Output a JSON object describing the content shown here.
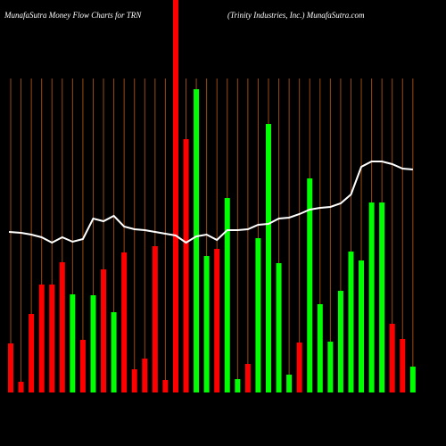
{
  "chart_data": {
    "type": "bar",
    "title": "MunafaSutra  Money  Flow  Charts for TRN",
    "subtitle": "(Trinity Industries, Inc.) MunafaSutra.com",
    "categories": [
      null,
      null,
      null,
      null,
      null,
      null,
      null,
      null,
      null,
      null,
      null,
      null,
      null,
      null,
      null,
      null,
      null,
      null,
      null,
      null,
      null,
      null,
      null,
      null,
      null,
      null,
      null,
      null,
      null,
      null,
      null,
      null,
      null,
      null,
      null,
      null,
      null,
      null,
      null,
      null
    ],
    "values": [
      55,
      12,
      88,
      121,
      121,
      146,
      110,
      59,
      109,
      138,
      90,
      157,
      26,
      38,
      164,
      14,
      440,
      284,
      340,
      153,
      161,
      218,
      15,
      32,
      173,
      301,
      145,
      20,
      56,
      240,
      99,
      57,
      114,
      158,
      148,
      213,
      213,
      77,
      60,
      29
    ],
    "colors": [
      "#ff0000",
      "#ff0000",
      "#ff0000",
      "#ff0000",
      "#ff0000",
      "#ff0000",
      "#00ff00",
      "#ff0000",
      "#00ff00",
      "#ff0000",
      "#00ff00",
      "#ff0000",
      "#ff0000",
      "#ff0000",
      "#ff0000",
      "#ff0000",
      "#ff0000",
      "#ff0000",
      "#00ff00",
      "#00ff00",
      "#ff0000",
      "#00ff00",
      "#00ff00",
      "#ff0000",
      "#00ff00",
      "#00ff00",
      "#00ff00",
      "#00ff00",
      "#ff0000",
      "#00ff00",
      "#00ff00",
      "#00ff00",
      "#00ff00",
      "#00ff00",
      "#00ff00",
      "#00ff00",
      "#00ff00",
      "#ff0000",
      "#ff0000",
      "#00ff00"
    ],
    "line_values": [
      180,
      179,
      177,
      174,
      168,
      174,
      169,
      172,
      195,
      192,
      198,
      186,
      183,
      182,
      180,
      178,
      176,
      168,
      175,
      177,
      171,
      182,
      182,
      183,
      188,
      189,
      195,
      196,
      200,
      205,
      207,
      208,
      212,
      222,
      253,
      259,
      259,
      256,
      251,
      250
    ],
    "line_color": "#ffffff",
    "ylim": [
      0,
      440
    ]
  }
}
